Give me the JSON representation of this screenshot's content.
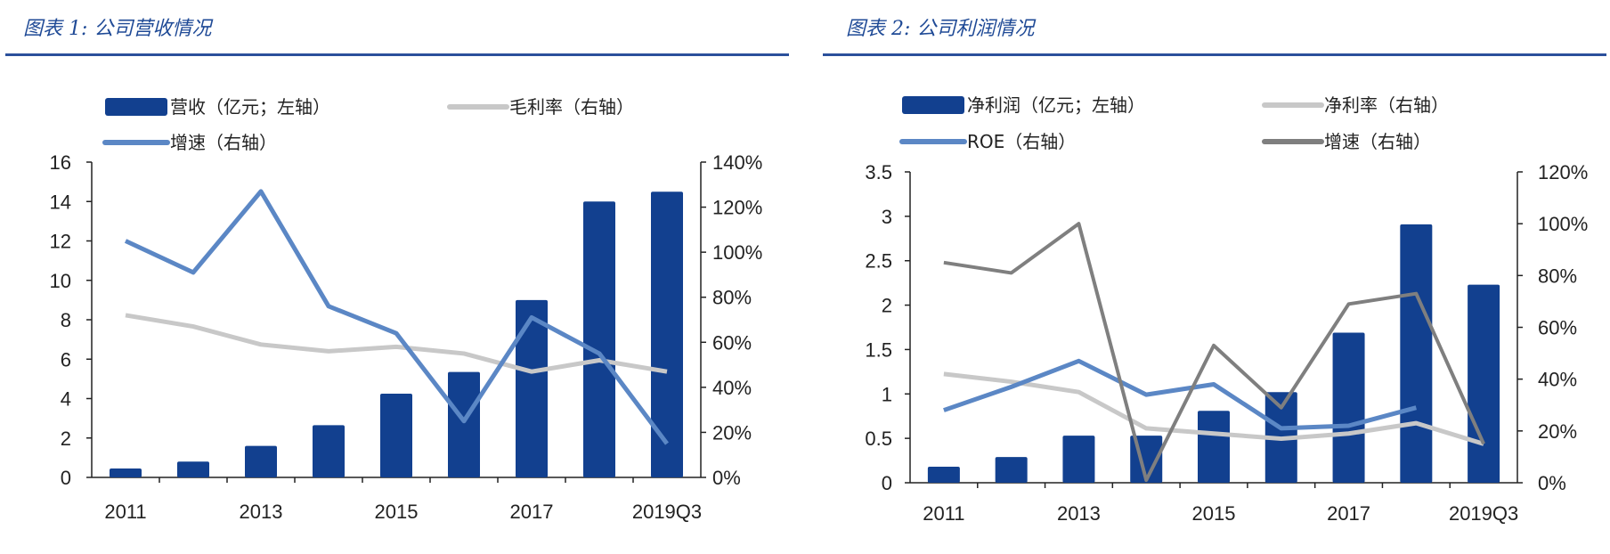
{
  "colors": {
    "title": "#1f4a96",
    "bar": "#12408f",
    "blue_line": "#5b87c5",
    "light_gray_line": "#c8c8c8",
    "dark_gray_line": "#7f7f7f"
  },
  "chart_data": [
    {
      "type": "bar+line",
      "title": "图表 1: 公司营收情况",
      "categories": [
        "2011",
        "2012",
        "2013",
        "2014",
        "2015",
        "2016",
        "2017",
        "2018",
        "2019Q3"
      ],
      "x_tick_labels": [
        "2011",
        "",
        "2013",
        "",
        "2015",
        "",
        "2017",
        "",
        "2019Q3"
      ],
      "ylim_left": [
        0,
        16
      ],
      "yticks_left": [
        "0",
        "2",
        "4",
        "6",
        "8",
        "10",
        "12",
        "14",
        "16"
      ],
      "ylim_right": [
        0,
        140
      ],
      "yticks_right": [
        "0%",
        "20%",
        "40%",
        "60%",
        "80%",
        "100%",
        "120%",
        "140%"
      ],
      "grid": false,
      "legend": "top",
      "series": [
        {
          "name": "营收（亿元；左轴）",
          "kind": "bar",
          "axis": "left",
          "color": "#12408f",
          "values": [
            0.45,
            0.8,
            1.6,
            2.65,
            4.25,
            5.35,
            9.0,
            14.0,
            14.5
          ]
        },
        {
          "name": "毛利率（右轴）",
          "kind": "line",
          "axis": "right",
          "color": "#c8c8c8",
          "values": [
            72,
            67,
            59,
            56,
            58,
            55,
            47,
            52,
            47
          ]
        },
        {
          "name": "增速（右轴）",
          "kind": "line",
          "axis": "right",
          "color": "#5b87c5",
          "values": [
            105,
            91,
            127,
            76,
            64,
            25,
            71,
            55,
            15
          ]
        }
      ]
    },
    {
      "type": "bar+line",
      "title": "图表 2: 公司利润情况",
      "categories": [
        "2011",
        "2012",
        "2013",
        "2014",
        "2015",
        "2016",
        "2017",
        "2018",
        "2019Q3"
      ],
      "x_tick_labels": [
        "2011",
        "",
        "2013",
        "",
        "2015",
        "",
        "2017",
        "",
        "2019Q3"
      ],
      "ylim_left": [
        0,
        3.5
      ],
      "yticks_left": [
        "0",
        "0.5",
        "1",
        "1.5",
        "2",
        "2.5",
        "3",
        "3.5"
      ],
      "ylim_right": [
        0,
        120
      ],
      "yticks_right": [
        "0%",
        "20%",
        "40%",
        "60%",
        "80%",
        "100%",
        "120%"
      ],
      "grid": false,
      "legend": "top",
      "series": [
        {
          "name": "净利润（亿元；左轴）",
          "kind": "bar",
          "axis": "left",
          "color": "#12408f",
          "values": [
            0.18,
            0.29,
            0.53,
            0.53,
            0.81,
            1.02,
            1.69,
            2.91,
            2.23
          ]
        },
        {
          "name": "净利率（右轴）",
          "kind": "line",
          "axis": "right",
          "color": "#c8c8c8",
          "values": [
            42,
            39,
            35,
            21,
            19,
            17,
            19,
            23,
            15
          ]
        },
        {
          "name": "ROE（右轴）",
          "kind": "line",
          "axis": "right",
          "color": "#5b87c5",
          "values": [
            28,
            37,
            47,
            34,
            38,
            21,
            22,
            29,
            null
          ]
        },
        {
          "name": "增速（右轴）",
          "kind": "line",
          "axis": "right",
          "color": "#7f7f7f",
          "values": [
            85,
            81,
            100,
            1,
            53,
            29,
            69,
            73,
            15
          ]
        }
      ]
    }
  ]
}
